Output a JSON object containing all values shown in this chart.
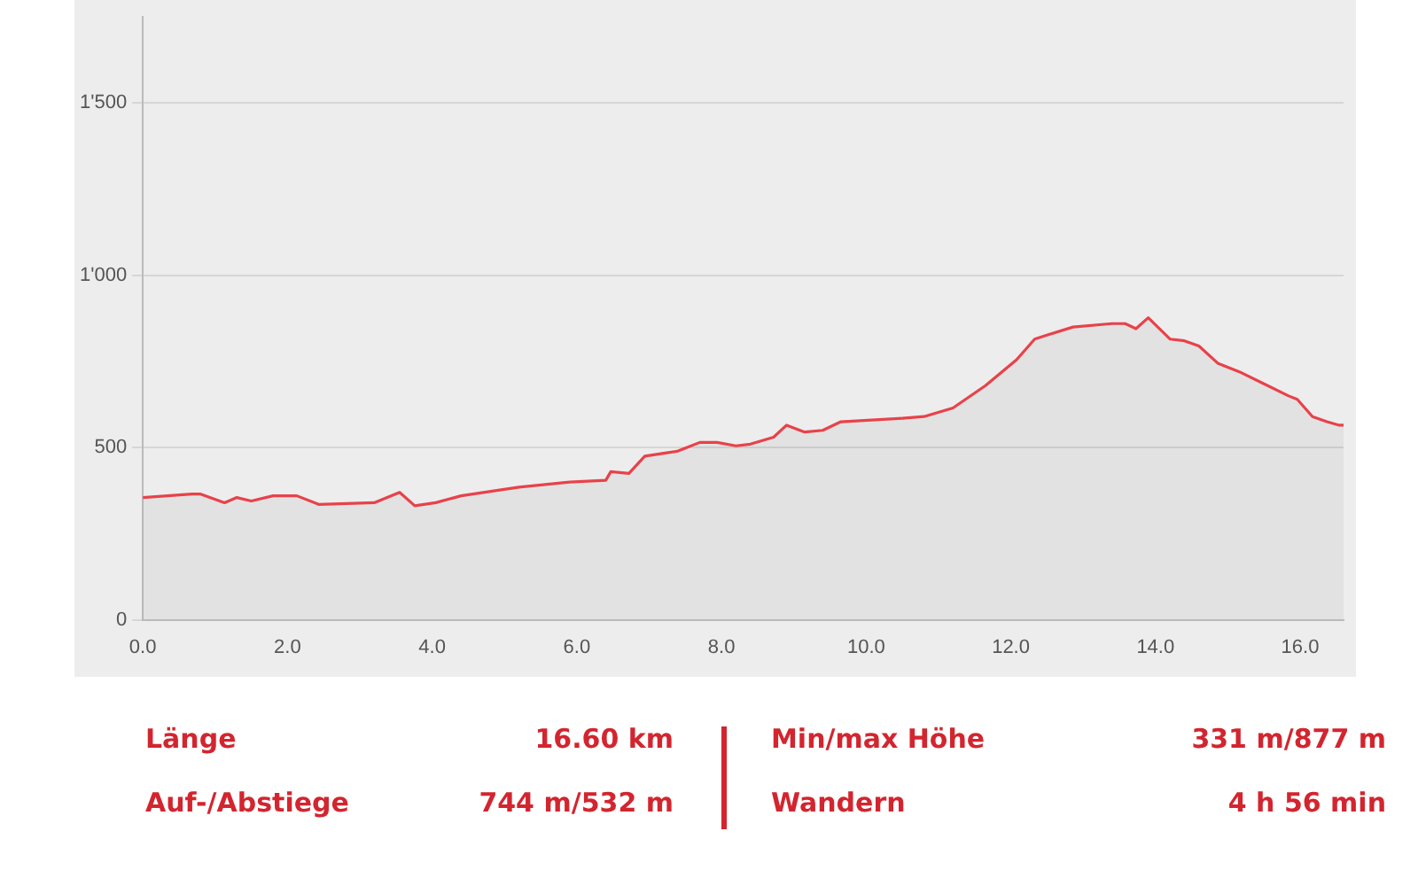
{
  "chart_data": {
    "type": "area",
    "x": [
      0,
      0.68,
      0.8,
      1.13,
      1.3,
      1.5,
      1.8,
      2.13,
      2.43,
      3.2,
      3.55,
      3.76,
      4.05,
      4.4,
      5.2,
      5.9,
      6.4,
      6.47,
      6.72,
      6.94,
      7.4,
      7.7,
      7.94,
      8.2,
      8.4,
      8.72,
      8.9,
      9.15,
      9.4,
      9.65,
      10.5,
      10.8,
      11.2,
      11.65,
      12.08,
      12.33,
      12.48,
      12.86,
      13.4,
      13.58,
      13.73,
      13.9,
      14.2,
      14.4,
      14.6,
      14.86,
      15.16,
      15.5,
      15.84,
      15.96,
      16.17,
      16.37,
      16.54,
      16.6
    ],
    "series": [
      {
        "color": "#e8424a",
        "values": [
          355,
          365,
          365,
          340,
          355,
          345,
          360,
          360,
          335,
          340,
          370,
          331,
          340,
          360,
          385,
          400,
          405,
          430,
          425,
          475,
          490,
          515,
          515,
          505,
          510,
          530,
          565,
          545,
          550,
          575,
          585,
          590,
          615,
          680,
          755,
          815,
          825,
          850,
          860,
          860,
          845,
          877,
          815,
          810,
          795,
          745,
          720,
          685,
          650,
          640,
          590,
          575,
          565,
          565
        ]
      }
    ],
    "xlim": [
      0,
      16.6
    ],
    "xticks": [
      {
        "value": 0,
        "label": "0.0"
      },
      {
        "value": 2,
        "label": "2.0"
      },
      {
        "value": 4,
        "label": "4.0"
      },
      {
        "value": 6,
        "label": "6.0"
      },
      {
        "value": 8,
        "label": "8.0"
      },
      {
        "value": 10,
        "label": "10.0"
      },
      {
        "value": 12,
        "label": "12.0"
      },
      {
        "value": 14,
        "label": "14.0"
      },
      {
        "value": 16,
        "label": "16.0"
      }
    ],
    "ylim": [
      0,
      1750
    ],
    "yticks": [
      0,
      500,
      {
        "value": 1000,
        "label": "1'000"
      },
      {
        "value": 1500,
        "label": "1'500"
      }
    ],
    "grid": "y",
    "marker": "none",
    "legend": false,
    "annotations": [
      "Länge",
      "16.60 km",
      "Auf-/Abstiege",
      "744 m/532 m",
      "Min/max Höhe",
      "331 m/877 m",
      "Wandern",
      "4 h 56 min"
    ]
  }
}
